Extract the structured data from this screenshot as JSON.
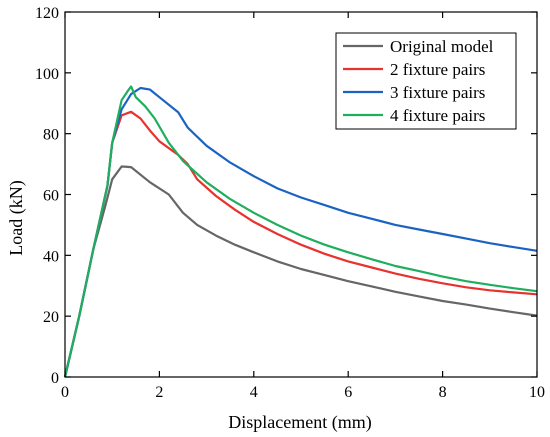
{
  "chart_data": {
    "type": "line",
    "title": "",
    "xlabel": "Displacement (mm)",
    "ylabel": "Load (kN)",
    "xlim": [
      0,
      10
    ],
    "ylim": [
      0,
      120
    ],
    "x_ticks": [
      0,
      2,
      4,
      6,
      8,
      10
    ],
    "y_ticks": [
      0,
      20,
      40,
      60,
      80,
      100,
      120
    ],
    "grid": false,
    "legend_position": "top-right",
    "series": [
      {
        "name": "Original model",
        "color": "#666666",
        "points": [
          [
            0,
            0
          ],
          [
            0.3,
            20
          ],
          [
            0.6,
            42
          ],
          [
            0.85,
            56
          ],
          [
            1.0,
            65
          ],
          [
            1.2,
            69.2
          ],
          [
            1.4,
            69
          ],
          [
            1.6,
            66.5
          ],
          [
            1.8,
            64
          ],
          [
            2.2,
            60
          ],
          [
            2.5,
            54
          ],
          [
            2.8,
            50
          ],
          [
            3.2,
            46.5
          ],
          [
            3.6,
            43.5
          ],
          [
            4,
            41
          ],
          [
            4.5,
            38
          ],
          [
            5,
            35.5
          ],
          [
            5.5,
            33.5
          ],
          [
            6,
            31.5
          ],
          [
            6.5,
            29.8
          ],
          [
            7,
            28
          ],
          [
            7.5,
            26.5
          ],
          [
            8,
            25
          ],
          [
            8.5,
            23.8
          ],
          [
            9,
            22.5
          ],
          [
            9.5,
            21.3
          ],
          [
            10,
            20.2
          ]
        ]
      },
      {
        "name": "2 fixture pairs",
        "color": "#e8322d",
        "points": [
          [
            0,
            0
          ],
          [
            0.3,
            20
          ],
          [
            0.6,
            42
          ],
          [
            0.9,
            63
          ],
          [
            1.0,
            77
          ],
          [
            1.2,
            86
          ],
          [
            1.4,
            87.2
          ],
          [
            1.6,
            85
          ],
          [
            1.8,
            81
          ],
          [
            2.0,
            77.5
          ],
          [
            2.4,
            73
          ],
          [
            2.6,
            70
          ],
          [
            2.8,
            65
          ],
          [
            3.2,
            59.5
          ],
          [
            3.6,
            55
          ],
          [
            4,
            51
          ],
          [
            4.5,
            47
          ],
          [
            5,
            43.5
          ],
          [
            5.5,
            40.5
          ],
          [
            6,
            38
          ],
          [
            6.5,
            36
          ],
          [
            7,
            34
          ],
          [
            7.5,
            32.3
          ],
          [
            8,
            30.8
          ],
          [
            8.5,
            29.5
          ],
          [
            9,
            28.5
          ],
          [
            9.5,
            27.8
          ],
          [
            10,
            27.2
          ]
        ]
      },
      {
        "name": "3 fixture pairs",
        "color": "#1b63c3",
        "points": [
          [
            0,
            0
          ],
          [
            0.3,
            20
          ],
          [
            0.6,
            42
          ],
          [
            0.9,
            63
          ],
          [
            1.0,
            77
          ],
          [
            1.2,
            88
          ],
          [
            1.4,
            93
          ],
          [
            1.6,
            95
          ],
          [
            1.8,
            94.5
          ],
          [
            2.0,
            92
          ],
          [
            2.4,
            87
          ],
          [
            2.6,
            82
          ],
          [
            3.0,
            76
          ],
          [
            3.5,
            70.5
          ],
          [
            4,
            66
          ],
          [
            4.5,
            62
          ],
          [
            5,
            59
          ],
          [
            5.5,
            56.5
          ],
          [
            6,
            54
          ],
          [
            6.5,
            52
          ],
          [
            7,
            50
          ],
          [
            7.5,
            48.5
          ],
          [
            8,
            47
          ],
          [
            8.5,
            45.5
          ],
          [
            9,
            44
          ],
          [
            9.5,
            42.7
          ],
          [
            10,
            41.5
          ]
        ]
      },
      {
        "name": "4 fixture pairs",
        "color": "#1fae5e",
        "points": [
          [
            0,
            0
          ],
          [
            0.3,
            20
          ],
          [
            0.6,
            42
          ],
          [
            0.9,
            63
          ],
          [
            1.0,
            77
          ],
          [
            1.2,
            91
          ],
          [
            1.35,
            94.5
          ],
          [
            1.4,
            95.5
          ],
          [
            1.5,
            92
          ],
          [
            1.7,
            89
          ],
          [
            1.9,
            85
          ],
          [
            2.2,
            77
          ],
          [
            2.5,
            71
          ],
          [
            3.0,
            64
          ],
          [
            3.5,
            58.5
          ],
          [
            4,
            54
          ],
          [
            4.5,
            50
          ],
          [
            5,
            46.5
          ],
          [
            5.5,
            43.5
          ],
          [
            6,
            41
          ],
          [
            6.5,
            38.7
          ],
          [
            7,
            36.5
          ],
          [
            7.5,
            34.8
          ],
          [
            8,
            33
          ],
          [
            8.5,
            31.5
          ],
          [
            9,
            30.3
          ],
          [
            9.5,
            29.2
          ],
          [
            10,
            28.2
          ]
        ]
      }
    ]
  }
}
